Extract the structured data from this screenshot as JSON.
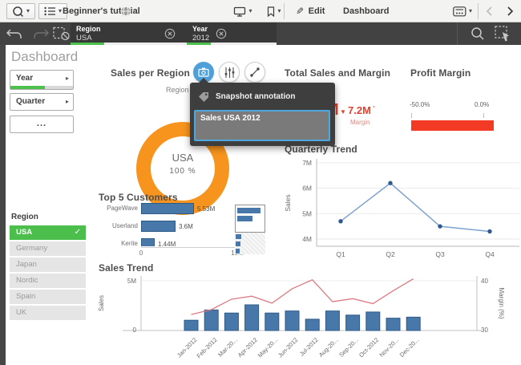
{
  "toolbar": {
    "app_title": "Beginner's tutorial",
    "edit_label": "Edit",
    "sheet_title": "Dashboard"
  },
  "selection_bar": {
    "selections": [
      {
        "field": "Region",
        "value": "USA"
      },
      {
        "field": "Year",
        "value": "2012"
      }
    ]
  },
  "sidebar": {
    "page_title": "Dashboard",
    "filter_buttons": [
      {
        "label": "Year",
        "progress": 0.55
      },
      {
        "label": "Quarter"
      },
      {
        "label": "..."
      }
    ],
    "region_filter": {
      "header": "Region",
      "items": [
        {
          "label": "USA",
          "selected": true
        },
        {
          "label": "Germany",
          "selected": false
        },
        {
          "label": "Japan",
          "selected": false
        },
        {
          "label": "Nordic",
          "selected": false
        },
        {
          "label": "Spain",
          "selected": false
        },
        {
          "label": "UK",
          "selected": false
        }
      ]
    }
  },
  "snapshot_popup": {
    "title": "Snapshot annotation",
    "annotation_text": "Sales USA 2012"
  },
  "icons": {
    "caret_down": "▾",
    "caret_right": "▸",
    "checkmark": "✓",
    "down_arrow": "▼",
    "pencil": "✎"
  },
  "chart_data": [
    {
      "id": "sales_per_region",
      "type": "pie",
      "title": "Sales per Region",
      "legend_label": "Region",
      "categories": [
        "USA"
      ],
      "values": [
        100
      ],
      "center_label": "USA",
      "center_value": "100 %",
      "color": "#F7941E"
    },
    {
      "id": "total_sales_and_margin",
      "type": "kpi",
      "title": "Total Sales and Margin",
      "occluded_fragment": "M",
      "trend": "down",
      "value": "7.2M",
      "value_suffix": "-",
      "label": "Margin",
      "color": "#E0432E"
    },
    {
      "id": "profit_margin",
      "type": "gauge",
      "title": "Profit Margin",
      "tick_labels": [
        "-50.0%",
        "0.0%"
      ],
      "range": [
        -50,
        0
      ],
      "fill_fraction": 1,
      "color": "#F23A24"
    },
    {
      "id": "quarterly_trend",
      "type": "line",
      "title": "Quarterly Trend",
      "ylabel": "Sales",
      "x": [
        "Q1",
        "Q2",
        "Q3",
        "Q4"
      ],
      "values": [
        4.7,
        6.2,
        4.5,
        4.3
      ],
      "unit": "M",
      "ytick_labels": [
        "7M",
        "6M",
        "5M",
        "4M"
      ],
      "ytick_values": [
        7,
        6,
        5,
        4
      ],
      "ylim": [
        4,
        7
      ],
      "line_color": "#7FA3CF",
      "marker_color": "#2E598C"
    },
    {
      "id": "top_5_customers",
      "type": "bar",
      "title": "Top 5 Customers",
      "categories": [
        "PageWave",
        "Userland",
        "Kerite Company"
      ],
      "values": [
        5.53,
        3.6,
        1.44
      ],
      "value_labels": [
        "5.53M",
        "3.6M",
        "1.44M"
      ],
      "xtick_labels": [
        "0",
        "10M"
      ],
      "xlim": [
        0,
        10
      ],
      "bar_color": "#4878AA",
      "minimap": {
        "window_fractions": [
          0.85,
          0.55
        ],
        "below_fractions": [
          0.2,
          0.17,
          0.15
        ]
      }
    },
    {
      "id": "sales_trend",
      "type": "combo",
      "title": "Sales Trend",
      "categories": [
        "Jan-2012",
        "Feb-2012",
        "Mar-20...",
        "Apr-2012",
        "May-20...",
        "Jun-2012",
        "Jul-2012",
        "Aug-20...",
        "Sep-20...",
        "Oct-2012",
        "Nov-20...",
        "Dec-20..."
      ],
      "series": [
        {
          "name": "Sales",
          "type": "bar",
          "axis": "left",
          "unit": "M",
          "values": [
            1.0,
            2.0,
            1.7,
            2.5,
            1.7,
            1.9,
            1.1,
            1.9,
            1.5,
            1.8,
            1.2,
            1.3
          ],
          "color": "#4878AA"
        },
        {
          "name": "Margin (%)",
          "type": "line",
          "axis": "right",
          "values": [
            33.2,
            34.2,
            36.3,
            36.9,
            35.5,
            38.4,
            40.2,
            35.8,
            36.4,
            35.4,
            38.0,
            40.4
          ],
          "color": "#DC7B83"
        }
      ],
      "left_axis": {
        "label": "Sales",
        "tick_labels": [
          "5M",
          "0"
        ],
        "lim": [
          0,
          5
        ]
      },
      "right_axis": {
        "label": "Margin (%)",
        "tick_labels": [
          "40",
          "30"
        ],
        "lim": [
          30,
          40
        ]
      }
    }
  ]
}
